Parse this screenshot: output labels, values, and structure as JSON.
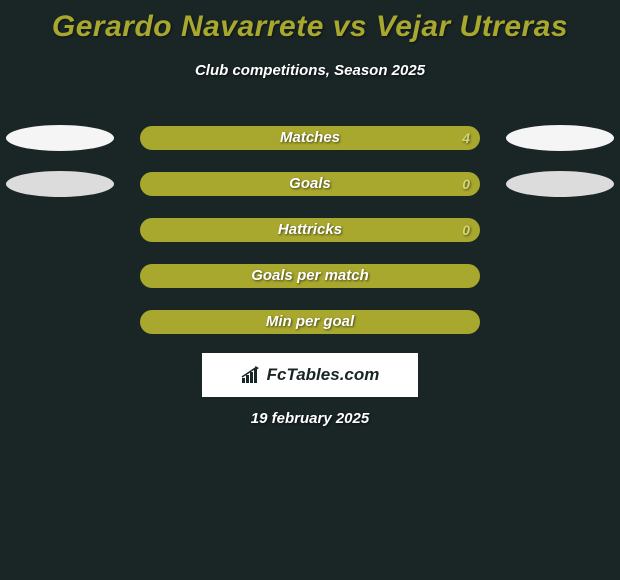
{
  "title": "Gerardo Navarrete vs Vejar Utreras",
  "subtitle": "Club competitions, Season 2025",
  "date": "19 february 2025",
  "logo": "FcTables.com",
  "colors": {
    "background": "#1a2526",
    "title": "#a8a82e",
    "subtitle": "#ffffff",
    "bar_left": "#a8a82e",
    "bar_right": "#a8a82e",
    "bar_label": "#ffffff",
    "value_text": "#d4d47a",
    "ellipse_left_0": "#f5f5f5",
    "ellipse_right_0": "#f5f5f5",
    "ellipse_left_1": "#dcdcdc",
    "ellipse_right_1": "#dcdcdc",
    "ellipse_hidden": "transparent",
    "logo_bg": "#ffffff",
    "logo_text": "#1a2526"
  },
  "rows": [
    {
      "label": "Matches",
      "left_value": "",
      "right_value": "4",
      "left_pct": 50,
      "right_pct": 50,
      "show_ellipse_left": true,
      "show_ellipse_right": true,
      "ellipse_left_color": "#f5f5f5",
      "ellipse_right_color": "#f5f5f5"
    },
    {
      "label": "Goals",
      "left_value": "",
      "right_value": "0",
      "left_pct": 50,
      "right_pct": 50,
      "show_ellipse_left": true,
      "show_ellipse_right": true,
      "ellipse_left_color": "#dcdcdc",
      "ellipse_right_color": "#dcdcdc"
    },
    {
      "label": "Hattricks",
      "left_value": "",
      "right_value": "0",
      "left_pct": 50,
      "right_pct": 50,
      "show_ellipse_left": false,
      "show_ellipse_right": false,
      "ellipse_left_color": "transparent",
      "ellipse_right_color": "transparent"
    },
    {
      "label": "Goals per match",
      "left_value": "",
      "right_value": "",
      "left_pct": 50,
      "right_pct": 50,
      "show_ellipse_left": false,
      "show_ellipse_right": false,
      "ellipse_left_color": "transparent",
      "ellipse_right_color": "transparent"
    },
    {
      "label": "Min per goal",
      "left_value": "",
      "right_value": "",
      "left_pct": 50,
      "right_pct": 50,
      "show_ellipse_left": false,
      "show_ellipse_right": false,
      "ellipse_left_color": "transparent",
      "ellipse_right_color": "transparent"
    }
  ]
}
